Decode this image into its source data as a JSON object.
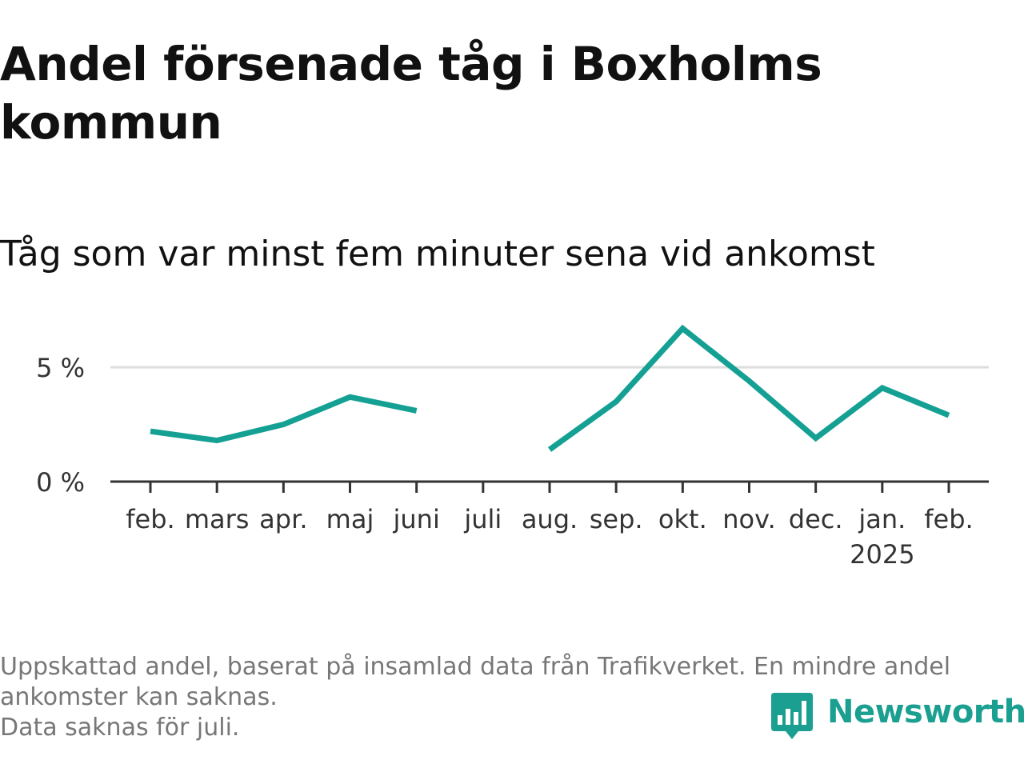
{
  "title": "Andel försenade tåg i Boxholms kommun",
  "subtitle": "Tåg som var minst fem minuter sena vid ankomst",
  "note_lines": [
    "Uppskattad andel, baserat på insamlad data från Trafikverket. En mindre andel",
    "ankomster kan saknas.",
    "Data saknas för juli."
  ],
  "brand": {
    "name": "Newsworthy",
    "icon": "newsworthy-logo-icon",
    "color": "#1a9f91"
  },
  "colors": {
    "line": "#15a094",
    "grid": "#dddddd",
    "axis": "#333333",
    "text": "#333333"
  },
  "chart_data": {
    "type": "line",
    "title": "Andel försenade tåg i Boxholms kommun",
    "subtitle": "Tåg som var minst fem minuter sena vid ankomst",
    "categories": [
      "feb.",
      "mars",
      "apr.",
      "maj",
      "juni",
      "juli",
      "aug.",
      "sep.",
      "okt.",
      "nov.",
      "dec.",
      "jan.",
      "feb."
    ],
    "category_sublabels": [
      "",
      "",
      "",
      "",
      "",
      "",
      "",
      "",
      "",
      "",
      "",
      "2025",
      ""
    ],
    "series": [
      {
        "values": [
          2.2,
          1.8,
          2.5,
          3.7,
          3.1,
          null,
          1.4,
          3.5,
          6.7,
          4.4,
          1.9,
          4.1,
          2.9
        ]
      }
    ],
    "ylim": [
      0,
      7
    ],
    "yticks": [
      0,
      5
    ],
    "ytick_labels": [
      "0 %",
      "5 %"
    ],
    "grid": true,
    "legend": "none"
  }
}
